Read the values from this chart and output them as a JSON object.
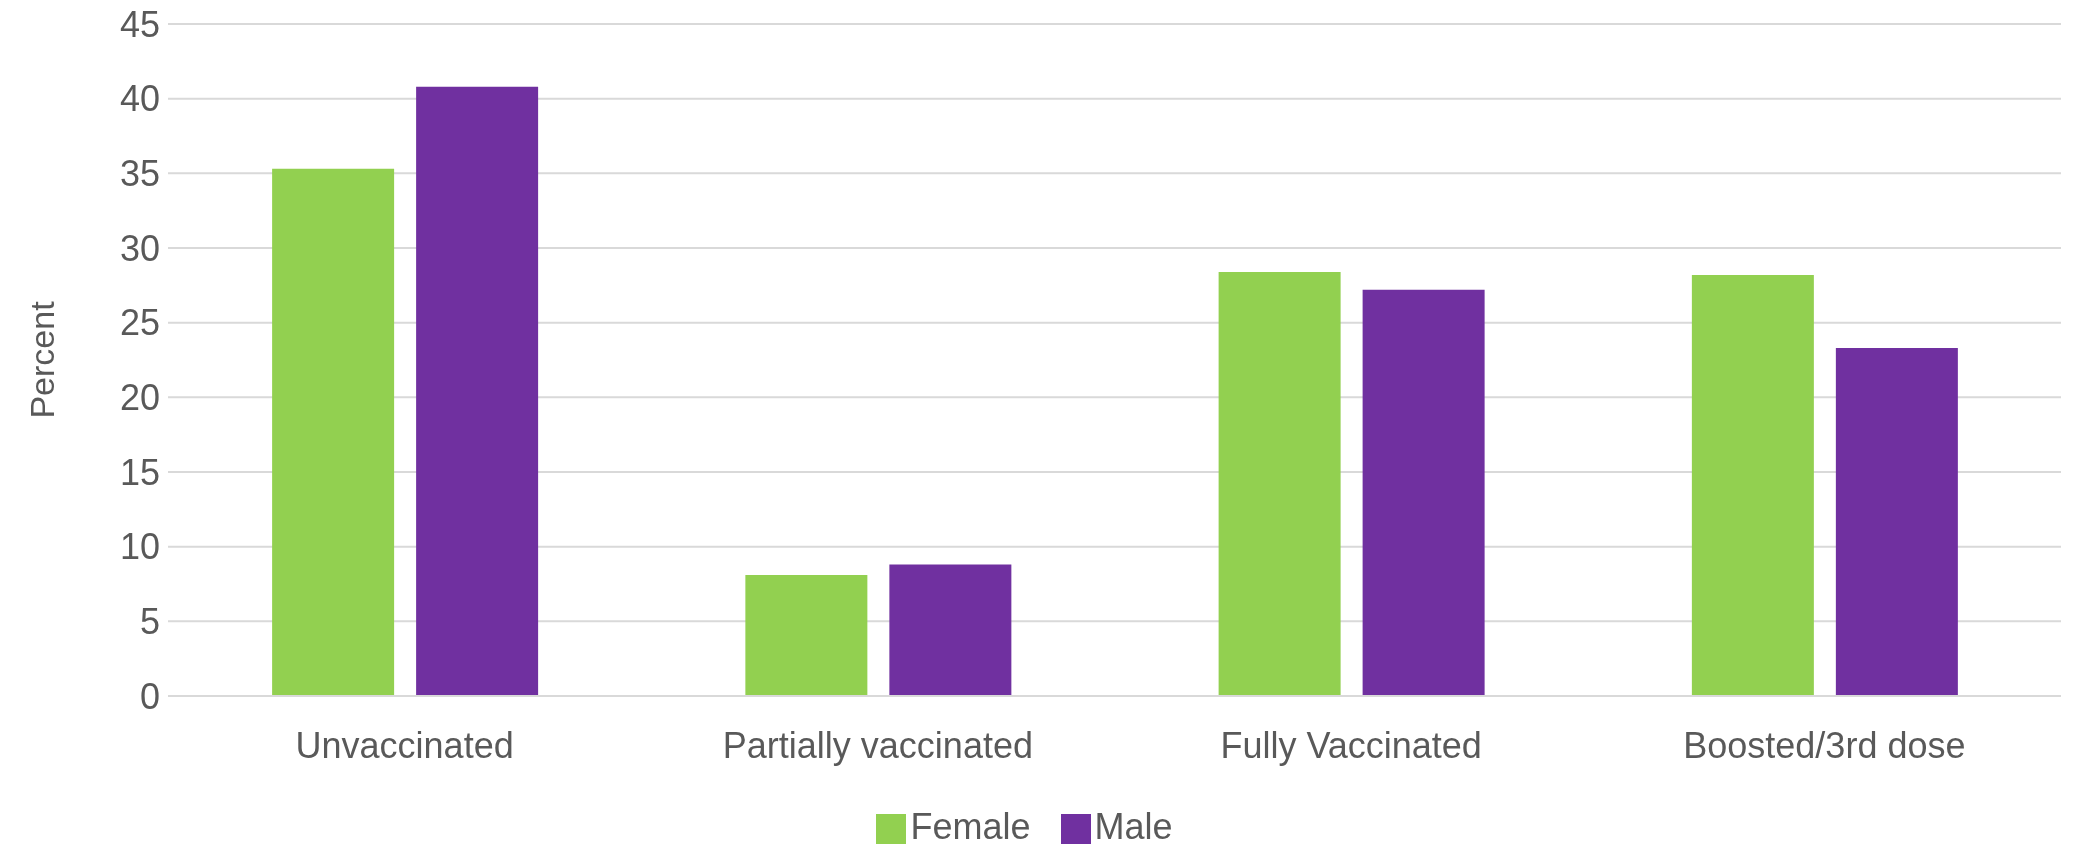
{
  "chart_data": {
    "type": "bar",
    "ylabel": "Percent",
    "categories": [
      "Unvaccinated",
      "Partially vaccinated",
      "Fully Vaccinated",
      "Boosted/3rd dose"
    ],
    "series": [
      {
        "name": "Female",
        "color": "#92d050",
        "values": [
          35.3,
          8.1,
          28.4,
          28.2
        ]
      },
      {
        "name": "Male",
        "color": "#7030a0",
        "values": [
          40.8,
          8.8,
          27.2,
          23.3
        ]
      }
    ],
    "ylim": [
      0,
      45
    ],
    "yticks": [
      0,
      5,
      10,
      15,
      20,
      25,
      30,
      35,
      40,
      45
    ],
    "grid": "y",
    "legend": "bottom"
  }
}
